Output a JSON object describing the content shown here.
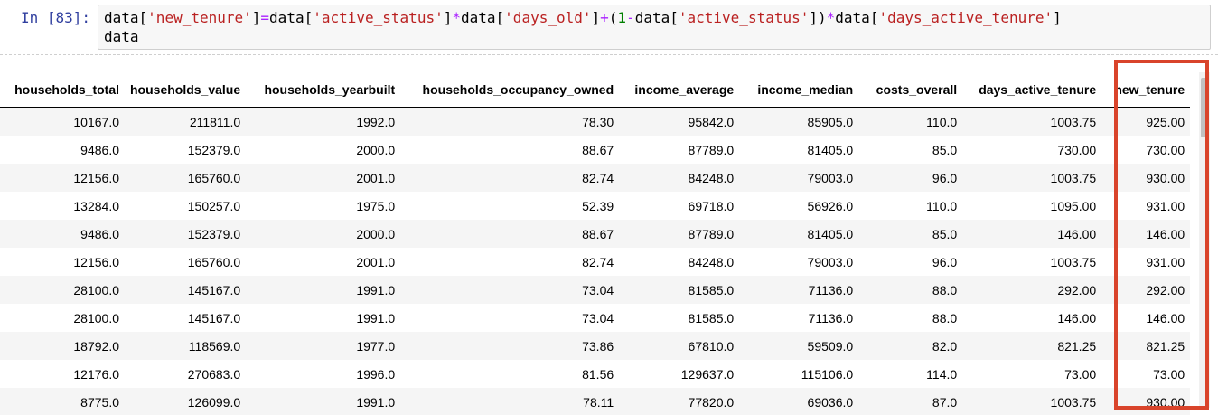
{
  "cell": {
    "prompt": "In [83]:",
    "code_tokens": [
      {
        "t": "data",
        "c": ""
      },
      {
        "t": "[",
        "c": ""
      },
      {
        "t": "'new_tenure'",
        "c": "s"
      },
      {
        "t": "]",
        "c": ""
      },
      {
        "t": "=",
        "c": "o"
      },
      {
        "t": "data",
        "c": ""
      },
      {
        "t": "[",
        "c": ""
      },
      {
        "t": "'active_status'",
        "c": "s"
      },
      {
        "t": "]",
        "c": ""
      },
      {
        "t": "*",
        "c": "o"
      },
      {
        "t": "data",
        "c": ""
      },
      {
        "t": "[",
        "c": ""
      },
      {
        "t": "'days_old'",
        "c": "s"
      },
      {
        "t": "]",
        "c": ""
      },
      {
        "t": "+",
        "c": "o"
      },
      {
        "t": "(",
        "c": ""
      },
      {
        "t": "1",
        "c": "n"
      },
      {
        "t": "-",
        "c": "o"
      },
      {
        "t": "data",
        "c": ""
      },
      {
        "t": "[",
        "c": ""
      },
      {
        "t": "'active_status'",
        "c": "s"
      },
      {
        "t": "])",
        "c": ""
      },
      {
        "t": "*",
        "c": "o"
      },
      {
        "t": "data",
        "c": ""
      },
      {
        "t": "[",
        "c": ""
      },
      {
        "t": "'days_active_tenure'",
        "c": "s"
      },
      {
        "t": "]",
        "c": ""
      },
      {
        "t": "\ndata",
        "c": ""
      }
    ]
  },
  "table": {
    "columns": [
      "households_total",
      "households_value",
      "households_yearbuilt",
      "households_occupancy_owned",
      "income_average",
      "income_median",
      "costs_overall",
      "days_active_tenure",
      "new_tenure"
    ],
    "rows": [
      [
        "10167.0",
        "211811.0",
        "1992.0",
        "78.30",
        "95842.0",
        "85905.0",
        "110.0",
        "1003.75",
        "925.00"
      ],
      [
        "9486.0",
        "152379.0",
        "2000.0",
        "88.67",
        "87789.0",
        "81405.0",
        "85.0",
        "730.00",
        "730.00"
      ],
      [
        "12156.0",
        "165760.0",
        "2001.0",
        "82.74",
        "84248.0",
        "79003.0",
        "96.0",
        "1003.75",
        "930.00"
      ],
      [
        "13284.0",
        "150257.0",
        "1975.0",
        "52.39",
        "69718.0",
        "56926.0",
        "110.0",
        "1095.00",
        "931.00"
      ],
      [
        "9486.0",
        "152379.0",
        "2000.0",
        "88.67",
        "87789.0",
        "81405.0",
        "85.0",
        "146.00",
        "146.00"
      ],
      [
        "12156.0",
        "165760.0",
        "2001.0",
        "82.74",
        "84248.0",
        "79003.0",
        "96.0",
        "1003.75",
        "931.00"
      ],
      [
        "28100.0",
        "145167.0",
        "1991.0",
        "73.04",
        "81585.0",
        "71136.0",
        "88.0",
        "292.00",
        "292.00"
      ],
      [
        "28100.0",
        "145167.0",
        "1991.0",
        "73.04",
        "81585.0",
        "71136.0",
        "88.0",
        "146.00",
        "146.00"
      ],
      [
        "18792.0",
        "118569.0",
        "1977.0",
        "73.86",
        "67810.0",
        "59509.0",
        "82.0",
        "821.25",
        "821.25"
      ],
      [
        "12176.0",
        "270683.0",
        "1996.0",
        "81.56",
        "129637.0",
        "115106.0",
        "114.0",
        "73.00",
        "73.00"
      ],
      [
        "8775.0",
        "126099.0",
        "1991.0",
        "78.11",
        "77820.0",
        "69036.0",
        "87.0",
        "1003.75",
        "930.00"
      ]
    ]
  },
  "highlight_color": "#d9442b"
}
